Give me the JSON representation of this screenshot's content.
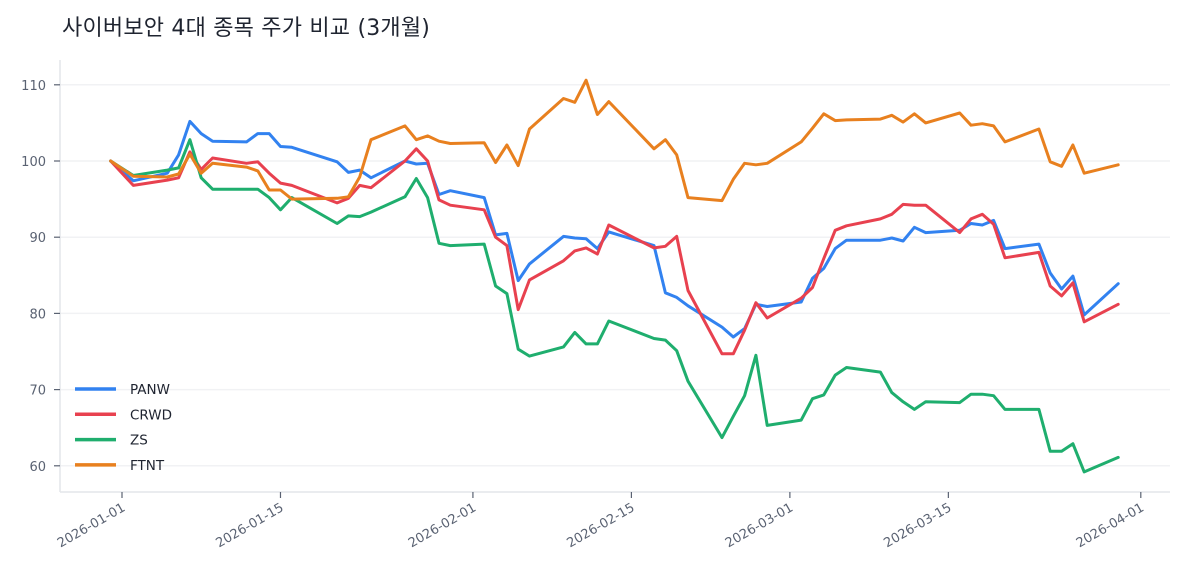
{
  "title": "사이버보안 4대 종목 주가 비교 (3개월)",
  "chart_data": {
    "type": "line",
    "title": "사이버보안 4대 종목 주가 비교 (3개월)",
    "xlabel": "",
    "ylabel": "",
    "ylim": [
      56.5,
      113.5
    ],
    "yticks": [
      60,
      70,
      80,
      90,
      100,
      110
    ],
    "xticks": [
      "2026-01-01",
      "2026-01-15",
      "2026-02-01",
      "2026-02-15",
      "2026-03-01",
      "2026-03-15",
      "2026-04-01"
    ],
    "grid": true,
    "legend_position": "lower left",
    "x": [
      "2025-12-31",
      "2026-01-02",
      "2026-01-05",
      "2026-01-06",
      "2026-01-07",
      "2026-01-08",
      "2026-01-09",
      "2026-01-12",
      "2026-01-13",
      "2026-01-14",
      "2026-01-15",
      "2026-01-16",
      "2026-01-20",
      "2026-01-21",
      "2026-01-22",
      "2026-01-23",
      "2026-01-26",
      "2026-01-27",
      "2026-01-28",
      "2026-01-29",
      "2026-01-30",
      "2026-02-02",
      "2026-02-03",
      "2026-02-04",
      "2026-02-05",
      "2026-02-06",
      "2026-02-09",
      "2026-02-10",
      "2026-02-11",
      "2026-02-12",
      "2026-02-13",
      "2026-02-17",
      "2026-02-18",
      "2026-02-19",
      "2026-02-20",
      "2026-02-23",
      "2026-02-24",
      "2026-02-25",
      "2026-02-26",
      "2026-02-27",
      "2026-03-02",
      "2026-03-03",
      "2026-03-04",
      "2026-03-05",
      "2026-03-06",
      "2026-03-09",
      "2026-03-10",
      "2026-03-11",
      "2026-03-12",
      "2026-03-13",
      "2026-03-16",
      "2026-03-17",
      "2026-03-18",
      "2026-03-19",
      "2026-03-20",
      "2026-03-23",
      "2026-03-24",
      "2026-03-25",
      "2026-03-26",
      "2026-03-27",
      "2026-03-30"
    ],
    "series": [
      {
        "name": "PANW",
        "color": "#3282f0",
        "values": [
          100.0,
          97.4,
          98.4,
          100.8,
          105.2,
          103.6,
          102.6,
          102.5,
          103.6,
          103.6,
          101.9,
          101.8,
          99.9,
          98.5,
          98.8,
          97.8,
          100.0,
          99.6,
          99.7,
          95.6,
          96.1,
          95.2,
          90.3,
          90.5,
          84.3,
          86.5,
          90.1,
          89.9,
          89.8,
          88.5,
          90.7,
          88.9,
          82.7,
          82.1,
          81.0,
          78.2,
          76.9,
          78.0,
          81.2,
          80.9,
          81.5,
          84.6,
          85.9,
          88.5,
          89.6,
          89.6,
          89.9,
          89.5,
          91.3,
          90.6,
          90.9,
          91.8,
          91.6,
          92.2,
          88.5,
          89.1,
          85.3,
          83.2,
          84.9,
          79.8,
          83.9
        ]
      },
      {
        "name": "CRWD",
        "color": "#e8414f",
        "values": [
          100.0,
          96.8,
          97.5,
          97.8,
          101.2,
          98.9,
          100.4,
          99.7,
          99.9,
          98.4,
          97.1,
          96.8,
          94.5,
          95.1,
          96.8,
          96.5,
          100.0,
          101.6,
          100.0,
          94.9,
          94.2,
          93.6,
          90.0,
          88.9,
          80.5,
          84.4,
          86.9,
          88.2,
          88.6,
          87.8,
          91.6,
          88.6,
          88.8,
          90.1,
          83.0,
          74.7,
          74.7,
          77.8,
          81.4,
          79.4,
          82.0,
          83.4,
          87.2,
          90.9,
          91.5,
          92.4,
          93.0,
          94.3,
          94.2,
          94.2,
          90.6,
          92.4,
          93.0,
          91.7,
          87.3,
          88.0,
          83.6,
          82.3,
          84.0,
          78.9,
          81.2
        ]
      },
      {
        "name": "ZS",
        "color": "#1fae6e",
        "values": [
          100.0,
          98.1,
          98.8,
          99.1,
          102.8,
          97.8,
          96.3,
          96.3,
          96.3,
          95.2,
          93.6,
          95.2,
          91.8,
          92.8,
          92.7,
          93.3,
          95.3,
          97.7,
          95.2,
          89.2,
          88.9,
          89.1,
          83.6,
          82.6,
          75.3,
          74.4,
          75.6,
          77.5,
          76.0,
          76.0,
          79.0,
          76.7,
          76.5,
          75.1,
          71.1,
          63.7,
          66.5,
          69.2,
          74.5,
          65.3,
          66.0,
          68.8,
          69.3,
          71.9,
          72.9,
          72.3,
          69.6,
          68.4,
          67.4,
          68.4,
          68.3,
          69.4,
          69.4,
          69.2,
          67.4,
          67.4,
          61.9,
          61.9,
          62.9,
          59.2,
          61.1
        ]
      },
      {
        "name": "FTNT",
        "color": "#e8801f",
        "values": [
          100.0,
          98.0,
          97.9,
          98.3,
          100.9,
          98.4,
          99.7,
          99.2,
          98.7,
          96.2,
          96.2,
          95.0,
          95.1,
          95.3,
          97.9,
          102.8,
          104.6,
          102.8,
          103.3,
          102.6,
          102.3,
          102.4,
          99.8,
          102.1,
          99.4,
          104.2,
          108.2,
          107.7,
          110.6,
          106.1,
          107.8,
          101.6,
          102.8,
          100.8,
          95.2,
          94.8,
          97.6,
          99.7,
          99.5,
          99.7,
          102.5,
          104.3,
          106.2,
          105.3,
          105.4,
          105.5,
          106.0,
          105.1,
          106.2,
          105.0,
          106.3,
          104.7,
          104.9,
          104.6,
          102.5,
          104.2,
          99.9,
          99.3,
          102.1,
          98.4,
          99.5
        ]
      }
    ]
  },
  "legend": [
    {
      "label": "PANW",
      "color": "#3282f0"
    },
    {
      "label": "CRWD",
      "color": "#e8414f"
    },
    {
      "label": "ZS",
      "color": "#1fae6e"
    },
    {
      "label": "FTNT",
      "color": "#e8801f"
    }
  ]
}
